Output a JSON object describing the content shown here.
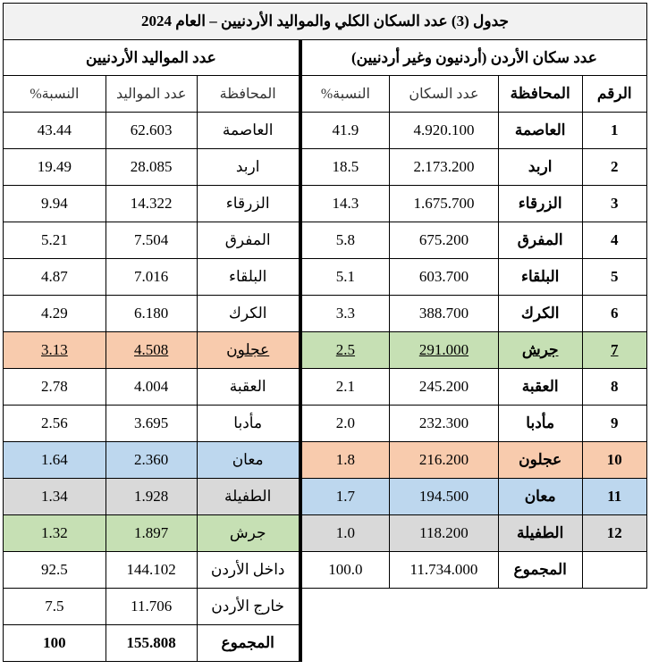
{
  "title": "جدول (3) عدد السكان الكلي والمواليد الأردنيين – العام 2024",
  "population": {
    "heading": "عدد سكان الأردن (أردنيون وغير أردنيين)",
    "columns": [
      "الرقم",
      "المحافظة",
      "عدد السكان",
      "النسبة%"
    ],
    "rows": [
      [
        "1",
        "العاصمة",
        "4.920.100",
        "41.9"
      ],
      [
        "2",
        "اربد",
        "2.173.200",
        "18.5"
      ],
      [
        "3",
        "الزرقاء",
        "1.675.700",
        "14.3"
      ],
      [
        "4",
        "المفرق",
        "675.200",
        "5.8"
      ],
      [
        "5",
        "البلقاء",
        "603.700",
        "5.1"
      ],
      [
        "6",
        "الكرك",
        "388.700",
        "3.3"
      ],
      [
        "7",
        "جرش",
        "291.000",
        "2.5"
      ],
      [
        "8",
        "العقبة",
        "245.200",
        "2.1"
      ],
      [
        "9",
        "مأدبا",
        "232.300",
        "2.0"
      ],
      [
        "10",
        "عجلون",
        "216.200",
        "1.8"
      ],
      [
        "11",
        "معان",
        "194.500",
        "1.7"
      ],
      [
        "12",
        "الطفيلة",
        "118.200",
        "1.0"
      ]
    ],
    "total": [
      "المجموع",
      "11.734.000",
      "100.0"
    ],
    "row_colors": [
      null,
      null,
      null,
      null,
      null,
      null,
      "#c6e0b4",
      null,
      null,
      "#f8cbad",
      "#bdd7ee",
      "#d9d9d9"
    ]
  },
  "births": {
    "heading": "عدد المواليد الأردنيين",
    "columns": [
      "المحافظة",
      "عدد المواليد",
      "النسبة%"
    ],
    "rows": [
      [
        "العاصمة",
        "62.603",
        "43.44"
      ],
      [
        "اربد",
        "28.085",
        "19.49"
      ],
      [
        "الزرقاء",
        "14.322",
        "9.94"
      ],
      [
        "المفرق",
        "7.504",
        "5.21"
      ],
      [
        "البلقاء",
        "7.016",
        "4.87"
      ],
      [
        "الكرك",
        "6.180",
        "4.29"
      ],
      [
        "عجلون",
        "4.508",
        "3.13"
      ],
      [
        "العقبة",
        "4.004",
        "2.78"
      ],
      [
        "مأدبا",
        "3.695",
        "2.56"
      ],
      [
        "معان",
        "2.360",
        "1.64"
      ],
      [
        "الطفيلة",
        "1.928",
        "1.34"
      ],
      [
        "جرش",
        "1.897",
        "1.32"
      ]
    ],
    "extra": [
      [
        "داخل الأردن",
        "144.102",
        "92.5"
      ],
      [
        "خارج الأردن",
        "11.706",
        "7.5"
      ],
      [
        "المجموع",
        "155.808",
        "100"
      ]
    ],
    "row_colors": [
      null,
      null,
      null,
      null,
      null,
      null,
      "#f8cbad",
      null,
      null,
      "#bdd7ee",
      "#d9d9d9",
      "#c6e0b4"
    ]
  },
  "underlined_row": 6
}
